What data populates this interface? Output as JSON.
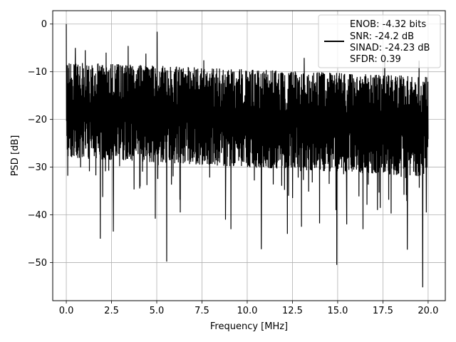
{
  "chart_data": {
    "type": "line",
    "title": "",
    "xlabel": "Frequency [MHz]",
    "ylabel": "PSD [dB]",
    "xlim": [
      -0.75,
      20.95
    ],
    "ylim": [
      -58,
      2.8
    ],
    "x_ticks": [
      0.0,
      2.5,
      5.0,
      7.5,
      10.0,
      12.5,
      15.0,
      17.5,
      20.0
    ],
    "x_tick_labels": [
      "0.0",
      "2.5",
      "5.0",
      "7.5",
      "10.0",
      "12.5",
      "15.0",
      "17.5",
      "20.0"
    ],
    "y_ticks": [
      0,
      -10,
      -20,
      -30,
      -40,
      -50
    ],
    "y_tick_labels": [
      "0",
      "−10",
      "−20",
      "−30",
      "−40",
      "−50"
    ],
    "grid": true,
    "legend": {
      "placement": "top-right",
      "entries": [
        "ENOB: -4.32 bits",
        "SNR: -24.2 dB",
        "SINAD: -24.23 dB",
        "SFDR: 0.39"
      ]
    },
    "series": [
      {
        "color": "#000000",
        "x_range": [
          0,
          20
        ],
        "n_points": 1800,
        "typical_band_db": [
          -30,
          -8
        ],
        "noise_envelope": {
          "upper_db": [
            -8,
            -11
          ],
          "lower_db": [
            -28,
            -32
          ]
        },
        "peaks": [
          {
            "x": 0.0,
            "y": 0.0
          },
          {
            "x": 0.02,
            "y": -8.6
          },
          {
            "x": 5.02,
            "y": -1.6
          },
          {
            "x": 0.5,
            "y": -5.0
          },
          {
            "x": 1.05,
            "y": -5.5
          },
          {
            "x": 2.2,
            "y": -6.0
          },
          {
            "x": 3.42,
            "y": -4.6
          },
          {
            "x": 4.4,
            "y": -6.2
          },
          {
            "x": 7.6,
            "y": -7.6
          },
          {
            "x": 13.15,
            "y": -7.1
          },
          {
            "x": 17.6,
            "y": -7.3
          },
          {
            "x": 19.5,
            "y": -7.7
          }
        ],
        "dips": [
          {
            "x": 0.08,
            "y": -31.8
          },
          {
            "x": 1.88,
            "y": -45.0
          },
          {
            "x": 2.6,
            "y": -43.5
          },
          {
            "x": 4.92,
            "y": -40.8
          },
          {
            "x": 5.55,
            "y": -49.8
          },
          {
            "x": 6.3,
            "y": -39.5
          },
          {
            "x": 8.8,
            "y": -41.0
          },
          {
            "x": 9.1,
            "y": -43.0
          },
          {
            "x": 10.78,
            "y": -47.2
          },
          {
            "x": 12.22,
            "y": -44.0
          },
          {
            "x": 13.0,
            "y": -42.5
          },
          {
            "x": 14.0,
            "y": -41.8
          },
          {
            "x": 14.95,
            "y": -50.5
          },
          {
            "x": 15.5,
            "y": -42.0
          },
          {
            "x": 16.4,
            "y": -43.0
          },
          {
            "x": 17.2,
            "y": -39.0
          },
          {
            "x": 18.85,
            "y": -47.3
          },
          {
            "x": 19.7,
            "y": -55.2
          },
          {
            "x": 19.9,
            "y": -39.5
          }
        ]
      }
    ]
  }
}
